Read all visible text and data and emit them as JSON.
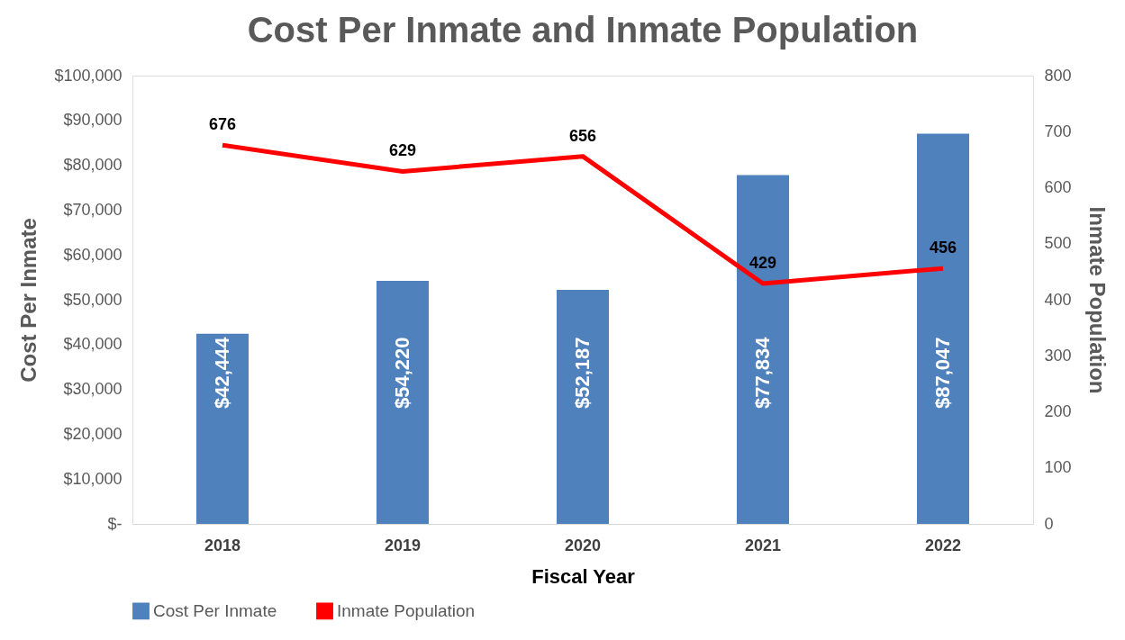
{
  "chart_data": {
    "type": "bar",
    "title": "Cost Per Inmate and Inmate Population",
    "xlabel": "Fiscal Year",
    "ylabel": "Cost Per Inmate",
    "y2label": "Inmate Population",
    "categories": [
      "2018",
      "2019",
      "2020",
      "2021",
      "2022"
    ],
    "series": [
      {
        "name": "Cost Per Inmate",
        "color": "#4f81bd",
        "values": [
          42444,
          54220,
          52187,
          77834,
          87047
        ],
        "value_labels": [
          "$42,444",
          "$54,220",
          "$52,187",
          "$77,834",
          "$87,047"
        ]
      },
      {
        "name": "Inmate Population",
        "type": "line",
        "axis": "y2",
        "color": "#ff0000",
        "values": [
          676,
          629,
          656,
          429,
          456
        ],
        "value_labels": [
          "676",
          "629",
          "656",
          "429",
          "456"
        ]
      }
    ],
    "ylim": [
      0,
      100000
    ],
    "yticks": [
      {
        "value": 0,
        "label": "$-"
      },
      {
        "value": 10000,
        "label": "$10,000"
      },
      {
        "value": 20000,
        "label": "$20,000"
      },
      {
        "value": 30000,
        "label": "$30,000"
      },
      {
        "value": 40000,
        "label": "$40,000"
      },
      {
        "value": 50000,
        "label": "$50,000"
      },
      {
        "value": 60000,
        "label": "$60,000"
      },
      {
        "value": 70000,
        "label": "$70,000"
      },
      {
        "value": 80000,
        "label": "$80,000"
      },
      {
        "value": 90000,
        "label": "$90,000"
      },
      {
        "value": 100000,
        "label": "$100,000"
      }
    ],
    "y2lim": [
      0,
      800
    ],
    "y2ticks": [
      0,
      100,
      200,
      300,
      400,
      500,
      600,
      700,
      800
    ],
    "grid": false,
    "legend": "bottom",
    "marker": "none",
    "line_style": "solid"
  }
}
